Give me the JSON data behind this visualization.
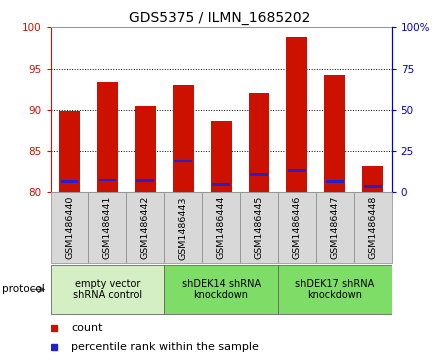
{
  "title": "GDS5375 / ILMN_1685202",
  "samples": [
    "GSM1486440",
    "GSM1486441",
    "GSM1486442",
    "GSM1486443",
    "GSM1486444",
    "GSM1486445",
    "GSM1486446",
    "GSM1486447",
    "GSM1486448"
  ],
  "count_values": [
    89.8,
    93.4,
    90.5,
    93.0,
    88.7,
    92.0,
    98.8,
    94.2,
    83.2
  ],
  "percentile_values": [
    81.3,
    81.5,
    81.4,
    83.8,
    81.0,
    82.2,
    82.6,
    81.3,
    80.7
  ],
  "bar_bottom": 80.0,
  "ylim_left": [
    80,
    100
  ],
  "ylim_right": [
    0,
    100
  ],
  "yticks_left": [
    80,
    85,
    90,
    95,
    100
  ],
  "yticks_right": [
    0,
    25,
    50,
    75,
    100
  ],
  "ytick_labels_right": [
    "0",
    "25",
    "50",
    "75",
    "100%"
  ],
  "count_color": "#CC1100",
  "percentile_color": "#2222CC",
  "bar_width": 0.55,
  "groups": [
    {
      "label": "empty vector\nshRNA control",
      "samples_idx": [
        0,
        1,
        2
      ],
      "color": "#d4efc4"
    },
    {
      "label": "shDEK14 shRNA\nknockdown",
      "samples_idx": [
        3,
        4,
        5
      ],
      "color": "#7ddd66"
    },
    {
      "label": "shDEK17 shRNA\nknockdown",
      "samples_idx": [
        6,
        7,
        8
      ],
      "color": "#7ddd66"
    }
  ],
  "protocol_label": "protocol",
  "legend_count_label": "count",
  "legend_percentile_label": "percentile rank within the sample",
  "plot_bg_color": "#ffffff",
  "left_tick_color": "#CC1100",
  "right_tick_color": "#0000CC",
  "grid_color": "#000000",
  "sample_box_color": "#d8d8d8",
  "sample_box_edge_color": "#888888"
}
